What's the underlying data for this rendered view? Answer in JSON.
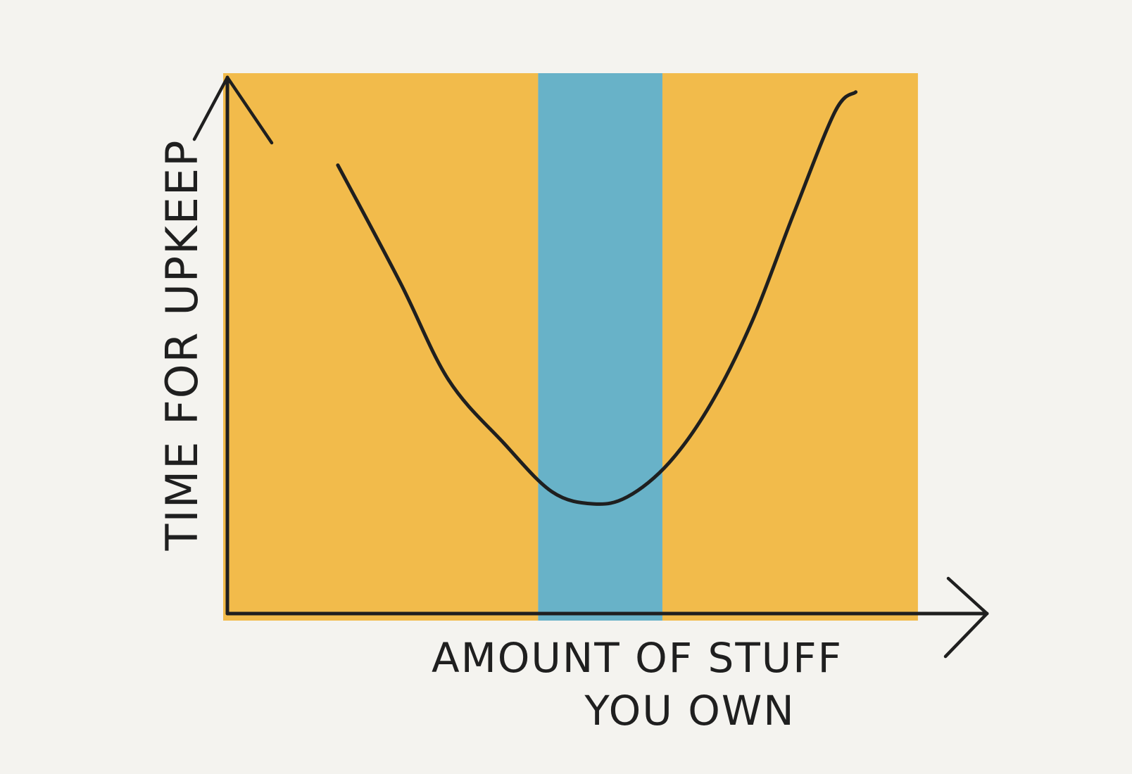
{
  "chart_data": {
    "type": "line",
    "title": "",
    "xlabel_line1": "AMOUNT OF STUFF",
    "xlabel_line2": "YOU OWN",
    "ylabel": "TIME FOR UPKEEP",
    "grid": false,
    "series": [
      {
        "x": [
          0.16,
          0.25,
          0.32,
          0.4,
          0.47,
          0.53,
          0.58,
          0.64,
          0.7,
          0.76,
          0.82,
          0.88,
          0.91
        ],
        "y": [
          0.92,
          0.68,
          0.48,
          0.35,
          0.25,
          0.225,
          0.24,
          0.31,
          0.43,
          0.6,
          0.82,
          1.03,
          1.07
        ]
      }
    ],
    "xlim": [
      0,
      1.1
    ],
    "ylim": [
      0,
      1.1
    ],
    "regions": [
      {
        "x_start": 0,
        "x_end": 0.45,
        "color": "#f2bb4b"
      },
      {
        "x_start": 0.45,
        "x_end": 0.63,
        "color": "#68b2c8"
      },
      {
        "x_start": 0.63,
        "x_end": 1.0,
        "color": "#f2bb4b"
      }
    ]
  },
  "colors": {
    "background": "#f4f3ef",
    "ink": "#1f1f1f",
    "orange": "#f2bb4b",
    "blue": "#68b2c8"
  }
}
